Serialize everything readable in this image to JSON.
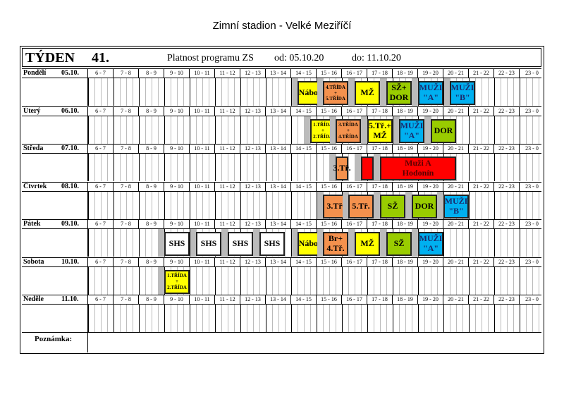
{
  "title": "Zimní stadion  - Velké Meziříčí",
  "header": {
    "week_label": "TÝDEN",
    "week": "41.",
    "program": "Platnost programu ZS",
    "from": "od: 05.10.20",
    "to": "do: 11.10.20"
  },
  "hours": [
    "6 - 7",
    "7 - 8",
    "8 - 9",
    "9 - 10",
    "10 - 11",
    "11 - 12",
    "12 - 13",
    "13 - 14",
    "14 - 15",
    "15 - 16",
    "16 - 17",
    "17 - 18",
    "18 - 19",
    "19 - 20",
    "20 - 21",
    "21 - 22",
    "22 - 23",
    "23 - 0"
  ],
  "colors": {
    "yellow": "#ffff00",
    "orange": "#f4914d",
    "green": "#99cc00",
    "blue": "#00b0f0",
    "red": "#ff0000",
    "white": "#ffffff"
  },
  "days": [
    {
      "name": "Pondělí",
      "date": "05.10.",
      "blocks": [
        {
          "label": "Nábor",
          "start": 14.25,
          "end": 15.25,
          "color": "yellow"
        },
        {
          "label": "4.TŘÍDA\n+\n5.TŘÍDA",
          "start": 15.25,
          "end": 16.25,
          "color": "orange",
          "small": true
        },
        {
          "label": "MŽ",
          "start": 16.5,
          "end": 17.5,
          "color": "yellow"
        },
        {
          "label": "SŽ+\nDOR",
          "start": 17.75,
          "end": 18.75,
          "color": "green"
        },
        {
          "label": "MUŽI\n\"A\"",
          "start": 19,
          "end": 20,
          "color": "blue"
        },
        {
          "label": "MUŽI\n\"B\"",
          "start": 20.25,
          "end": 21.25,
          "color": "blue"
        }
      ]
    },
    {
      "name": "Úterý",
      "date": "06.10.",
      "blocks": [
        {
          "label": "1.TŘÍDA\n+\n2.TŘÍDA",
          "start": 14.75,
          "end": 15.75,
          "color": "yellow",
          "small": true
        },
        {
          "label": "3.TŘÍDA\n+\n4.TŘÍDA",
          "start": 15.75,
          "end": 16.75,
          "color": "orange",
          "small": true
        },
        {
          "label": "5.Tř.+\nMŽ",
          "start": 17,
          "end": 18,
          "color": "yellow"
        },
        {
          "label": "MUŽI\n\"A\"",
          "start": 18.25,
          "end": 19.25,
          "color": "blue"
        },
        {
          "label": "DOR",
          "start": 19.5,
          "end": 20.5,
          "color": "green"
        }
      ]
    },
    {
      "name": "Středa",
      "date": "07.10.",
      "blocks": [
        {
          "label": "3.Tř.",
          "start": 15.75,
          "end": 16.25,
          "color": "orange"
        },
        {
          "label": "",
          "start": 16.75,
          "end": 17.25,
          "color": "red"
        },
        {
          "label": "Muži A\nHodonín",
          "start": 17.5,
          "end": 20.5,
          "color": "red"
        }
      ]
    },
    {
      "name": "Čtvrtek",
      "date": "08.10.",
      "blocks": [
        {
          "label": "3.Tř.",
          "start": 15.25,
          "end": 16.25,
          "color": "orange"
        },
        {
          "label": "5.Tř.",
          "start": 16.25,
          "end": 17.25,
          "color": "orange"
        },
        {
          "label": "SŽ",
          "start": 17.5,
          "end": 18.5,
          "color": "green"
        },
        {
          "label": "DOR",
          "start": 18.75,
          "end": 19.75,
          "color": "green"
        },
        {
          "label": "MUŽI\n\"B\"",
          "start": 20,
          "end": 21,
          "color": "blue"
        }
      ]
    },
    {
      "name": "Pátek",
      "date": "09.10.",
      "blocks": [
        {
          "label": "SHS",
          "start": 9,
          "end": 10,
          "color": "white"
        },
        {
          "label": "SHS",
          "start": 10.25,
          "end": 11.25,
          "color": "white"
        },
        {
          "label": "SHS",
          "start": 11.5,
          "end": 12.5,
          "color": "white"
        },
        {
          "label": "SHS",
          "start": 12.75,
          "end": 13.75,
          "color": "white"
        },
        {
          "label": "Nábor",
          "start": 14.25,
          "end": 15.25,
          "color": "yellow"
        },
        {
          "label": "Br+\n4.Tř.",
          "start": 15.25,
          "end": 16.25,
          "color": "orange"
        },
        {
          "label": "MŽ",
          "start": 16.5,
          "end": 17.5,
          "color": "yellow"
        },
        {
          "label": "SŽ",
          "start": 17.75,
          "end": 18.75,
          "color": "green"
        },
        {
          "label": "MUŽI\n\"A\"",
          "start": 19,
          "end": 20,
          "color": "blue"
        }
      ]
    },
    {
      "name": "Sobota",
      "date": "10.10.",
      "blocks": [
        {
          "label": "1.TŘÍDA\n+\n2.TŘÍDA",
          "start": 9,
          "end": 10,
          "color": "yellow",
          "small": true
        }
      ]
    },
    {
      "name": "Neděle",
      "date": "11.10.",
      "blocks": []
    }
  ],
  "note_label": "Poznámka:"
}
